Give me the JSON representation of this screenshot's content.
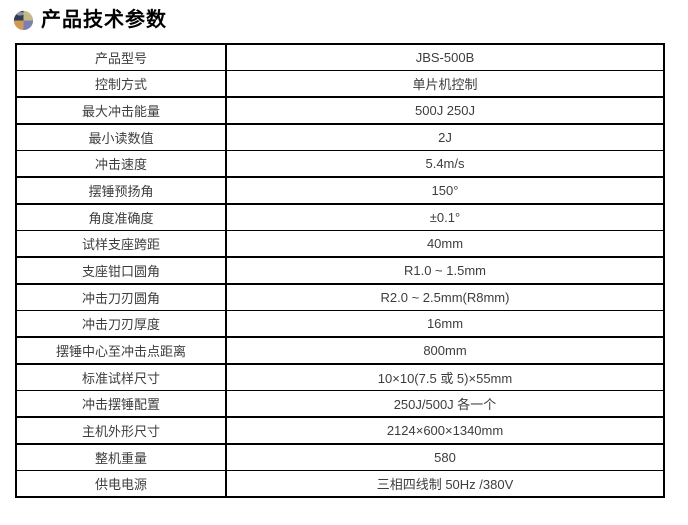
{
  "header": {
    "title": "产品技术参数",
    "icon": {
      "name": "pie-sphere-icon",
      "colors": {
        "top_left": "#2e3d55",
        "top_right": "#c5ba85",
        "bottom_left": "#d09a55",
        "bottom_right": "#7a80b2",
        "highlight": "#ffffff"
      }
    }
  },
  "table": {
    "rows": [
      {
        "label": "产品型号",
        "value": "JBS-500B"
      },
      {
        "label": "控制方式",
        "value": "单片机控制"
      },
      {
        "label": "最大冲击能量",
        "value": "500J 250J"
      },
      {
        "label": "最小读数值",
        "value": "2J"
      },
      {
        "label": "冲击速度",
        "value": "5.4m/s"
      },
      {
        "label": "摆锤预扬角",
        "value": "150°"
      },
      {
        "label": "角度准确度",
        "value": "±0.1°"
      },
      {
        "label": "试样支座跨距",
        "value": "40mm"
      },
      {
        "label": "支座钳口圆角",
        "value": "R1.0 ~ 1.5mm"
      },
      {
        "label": "冲击刀刃圆角",
        "value": "R2.0 ~ 2.5mm(R8mm)"
      },
      {
        "label": "冲击刀刃厚度",
        "value": "16mm"
      },
      {
        "label": "摆锤中心至冲击点距离",
        "value": "800mm"
      },
      {
        "label": "标准试样尺寸",
        "value": "10×10(7.5 或 5)×55mm"
      },
      {
        "label": "冲击摆锤配置",
        "value": "250J/500J 各一个"
      },
      {
        "label": "主机外形尺寸",
        "value": "2124×600×1340mm"
      },
      {
        "label": "整机重量",
        "value": "580"
      },
      {
        "label": "供电电源",
        "value": "三相四线制 50Hz /380V"
      }
    ]
  }
}
